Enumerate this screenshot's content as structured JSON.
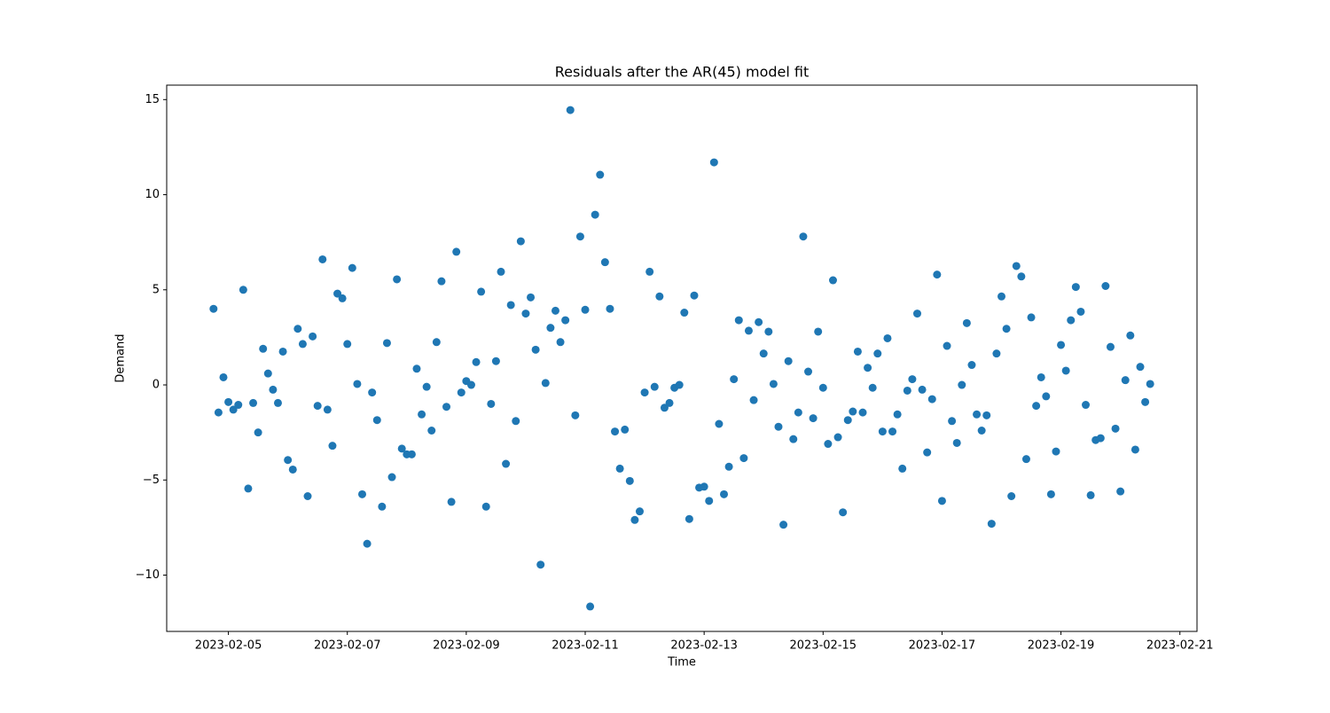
{
  "chart_data": {
    "type": "scatter",
    "title": "Residuals after the AR(45) model fit",
    "x_label": "Time",
    "y_label": "Demand",
    "x": [
      "2023-02-04T18:00",
      "2023-02-04T20:00",
      "2023-02-04T22:00",
      "2023-02-05T00:00",
      "2023-02-05T02:00",
      "2023-02-05T04:00",
      "2023-02-05T06:00",
      "2023-02-05T08:00",
      "2023-02-05T10:00",
      "2023-02-05T12:00",
      "2023-02-05T14:00",
      "2023-02-05T16:00",
      "2023-02-05T18:00",
      "2023-02-05T20:00",
      "2023-02-05T22:00",
      "2023-02-06T00:00",
      "2023-02-06T02:00",
      "2023-02-06T04:00",
      "2023-02-06T06:00",
      "2023-02-06T08:00",
      "2023-02-06T10:00",
      "2023-02-06T12:00",
      "2023-02-06T14:00",
      "2023-02-06T16:00",
      "2023-02-06T18:00",
      "2023-02-06T20:00",
      "2023-02-06T22:00",
      "2023-02-07T00:00",
      "2023-02-07T02:00",
      "2023-02-07T04:00",
      "2023-02-07T06:00",
      "2023-02-07T08:00",
      "2023-02-07T10:00",
      "2023-02-07T12:00",
      "2023-02-07T14:00",
      "2023-02-07T16:00",
      "2023-02-07T18:00",
      "2023-02-07T20:00",
      "2023-02-07T22:00",
      "2023-02-08T00:00",
      "2023-02-08T02:00",
      "2023-02-08T04:00",
      "2023-02-08T06:00",
      "2023-02-08T08:00",
      "2023-02-08T10:00",
      "2023-02-08T12:00",
      "2023-02-08T14:00",
      "2023-02-08T16:00",
      "2023-02-08T18:00",
      "2023-02-08T20:00",
      "2023-02-08T22:00",
      "2023-02-09T00:00",
      "2023-02-09T02:00",
      "2023-02-09T04:00",
      "2023-02-09T06:00",
      "2023-02-09T08:00",
      "2023-02-09T10:00",
      "2023-02-09T12:00",
      "2023-02-09T14:00",
      "2023-02-09T16:00",
      "2023-02-09T18:00",
      "2023-02-09T20:00",
      "2023-02-09T22:00",
      "2023-02-10T00:00",
      "2023-02-10T02:00",
      "2023-02-10T04:00",
      "2023-02-10T06:00",
      "2023-02-10T08:00",
      "2023-02-10T10:00",
      "2023-02-10T12:00",
      "2023-02-10T14:00",
      "2023-02-10T16:00",
      "2023-02-10T18:00",
      "2023-02-10T20:00",
      "2023-02-10T22:00",
      "2023-02-11T00:00",
      "2023-02-11T02:00",
      "2023-02-11T04:00",
      "2023-02-11T06:00",
      "2023-02-11T08:00",
      "2023-02-11T10:00",
      "2023-02-11T12:00",
      "2023-02-11T14:00",
      "2023-02-11T16:00",
      "2023-02-11T18:00",
      "2023-02-11T20:00",
      "2023-02-11T22:00",
      "2023-02-12T00:00",
      "2023-02-12T02:00",
      "2023-02-12T04:00",
      "2023-02-12T06:00",
      "2023-02-12T08:00",
      "2023-02-12T10:00",
      "2023-02-12T12:00",
      "2023-02-12T14:00",
      "2023-02-12T16:00",
      "2023-02-12T18:00",
      "2023-02-12T20:00",
      "2023-02-12T22:00",
      "2023-02-13T00:00",
      "2023-02-13T02:00",
      "2023-02-13T04:00",
      "2023-02-13T06:00",
      "2023-02-13T08:00",
      "2023-02-13T10:00",
      "2023-02-13T12:00",
      "2023-02-13T14:00",
      "2023-02-13T16:00",
      "2023-02-13T18:00",
      "2023-02-13T20:00",
      "2023-02-13T22:00",
      "2023-02-14T00:00",
      "2023-02-14T02:00",
      "2023-02-14T04:00",
      "2023-02-14T06:00",
      "2023-02-14T08:00",
      "2023-02-14T10:00",
      "2023-02-14T12:00",
      "2023-02-14T14:00",
      "2023-02-14T16:00",
      "2023-02-14T18:00",
      "2023-02-14T20:00",
      "2023-02-14T22:00",
      "2023-02-15T00:00",
      "2023-02-15T02:00",
      "2023-02-15T04:00",
      "2023-02-15T06:00",
      "2023-02-15T08:00",
      "2023-02-15T10:00",
      "2023-02-15T12:00",
      "2023-02-15T14:00",
      "2023-02-15T16:00",
      "2023-02-15T18:00",
      "2023-02-15T20:00",
      "2023-02-15T22:00",
      "2023-02-16T00:00",
      "2023-02-16T02:00",
      "2023-02-16T04:00",
      "2023-02-16T06:00",
      "2023-02-16T08:00",
      "2023-02-16T10:00",
      "2023-02-16T12:00",
      "2023-02-16T14:00",
      "2023-02-16T16:00",
      "2023-02-16T18:00",
      "2023-02-16T20:00",
      "2023-02-16T22:00",
      "2023-02-17T00:00",
      "2023-02-17T02:00",
      "2023-02-17T04:00",
      "2023-02-17T06:00",
      "2023-02-17T08:00",
      "2023-02-17T10:00",
      "2023-02-17T12:00",
      "2023-02-17T14:00",
      "2023-02-17T16:00",
      "2023-02-17T18:00",
      "2023-02-17T20:00",
      "2023-02-17T22:00",
      "2023-02-18T00:00",
      "2023-02-18T02:00",
      "2023-02-18T04:00",
      "2023-02-18T06:00",
      "2023-02-18T08:00",
      "2023-02-18T10:00",
      "2023-02-18T12:00",
      "2023-02-18T14:00",
      "2023-02-18T16:00",
      "2023-02-18T18:00",
      "2023-02-18T20:00",
      "2023-02-18T22:00",
      "2023-02-19T00:00",
      "2023-02-19T02:00",
      "2023-02-19T04:00",
      "2023-02-19T06:00",
      "2023-02-19T08:00",
      "2023-02-19T10:00",
      "2023-02-19T12:00",
      "2023-02-19T14:00",
      "2023-02-19T16:00",
      "2023-02-19T18:00",
      "2023-02-19T20:00",
      "2023-02-19T22:00",
      "2023-02-20T00:00",
      "2023-02-20T02:00",
      "2023-02-20T04:00",
      "2023-02-20T06:00",
      "2023-02-20T08:00",
      "2023-02-20T10:00",
      "2023-02-20T12:00"
    ],
    "values": [
      4.0,
      -1.45,
      0.4,
      -0.9,
      -1.3,
      -1.05,
      5.0,
      -5.45,
      -0.95,
      -2.5,
      1.9,
      0.6,
      -0.25,
      -0.95,
      1.75,
      -3.95,
      -4.45,
      2.95,
      2.15,
      -5.85,
      2.55,
      -1.1,
      6.6,
      -1.3,
      -3.2,
      4.8,
      4.55,
      2.15,
      6.15,
      0.05,
      -5.75,
      -8.35,
      -0.4,
      -1.85,
      -6.4,
      2.2,
      -4.85,
      5.55,
      -3.35,
      -3.65,
      -3.65,
      0.85,
      -1.55,
      -0.1,
      -2.4,
      2.25,
      5.45,
      -1.15,
      -6.15,
      7.0,
      -0.4,
      0.2,
      0.0,
      1.2,
      4.9,
      -6.4,
      -1.0,
      1.25,
      5.95,
      -4.15,
      4.2,
      -1.9,
      7.55,
      3.75,
      4.6,
      1.85,
      -9.45,
      0.1,
      3.0,
      3.9,
      2.25,
      3.4,
      14.45,
      -1.6,
      7.8,
      3.95,
      -11.65,
      8.95,
      11.05,
      6.45,
      4.0,
      -2.45,
      -4.4,
      -2.35,
      -5.05,
      -7.1,
      -6.65,
      -0.4,
      5.95,
      -0.1,
      4.65,
      -1.2,
      -0.95,
      -0.15,
      0.0,
      3.8,
      -7.05,
      4.7,
      -5.4,
      -5.35,
      -6.1,
      11.7,
      -2.05,
      -5.75,
      -4.3,
      0.3,
      3.4,
      -3.85,
      2.85,
      -0.8,
      3.3,
      1.65,
      2.8,
      0.05,
      -2.2,
      -7.35,
      1.25,
      -2.85,
      -1.45,
      7.8,
      0.7,
      -1.75,
      2.8,
      -0.15,
      -3.1,
      5.5,
      -2.75,
      -6.7,
      -1.85,
      -1.4,
      1.75,
      -1.45,
      0.9,
      -0.15,
      1.65,
      -2.45,
      2.45,
      -2.45,
      -1.55,
      -4.4,
      -0.3,
      0.3,
      3.75,
      -0.25,
      -3.55,
      -0.75,
      5.8,
      -6.1,
      2.05,
      -1.9,
      -3.05,
      0.0,
      3.25,
      1.05,
      -1.55,
      -2.4,
      -1.6,
      -7.3,
      1.65,
      4.65,
      2.95,
      -5.85,
      6.25,
      5.7,
      -3.9,
      3.55,
      -1.1,
      0.4,
      -0.6,
      -5.75,
      -3.5,
      2.1,
      0.75,
      3.4,
      5.15,
      3.85,
      -1.05,
      -5.8,
      -2.9,
      -2.8,
      5.2,
      2.0,
      -2.3,
      -5.6,
      0.25,
      2.6,
      -3.4,
      0.95,
      -0.9,
      0.05
    ],
    "color": "#1f77b4",
    "xlim": [
      "2023-02-03T23:06",
      "2023-02-21T06:54"
    ],
    "xticks": [
      "2023-02-05",
      "2023-02-07",
      "2023-02-09",
      "2023-02-11",
      "2023-02-13",
      "2023-02-15",
      "2023-02-17",
      "2023-02-19",
      "2023-02-21"
    ],
    "ylim": [
      -12.96,
      15.76
    ],
    "yticks": [
      {
        "value": -10,
        "label": "−10"
      },
      {
        "value": -5,
        "label": "−5"
      },
      0,
      5,
      10,
      15
    ],
    "grid": false
  }
}
